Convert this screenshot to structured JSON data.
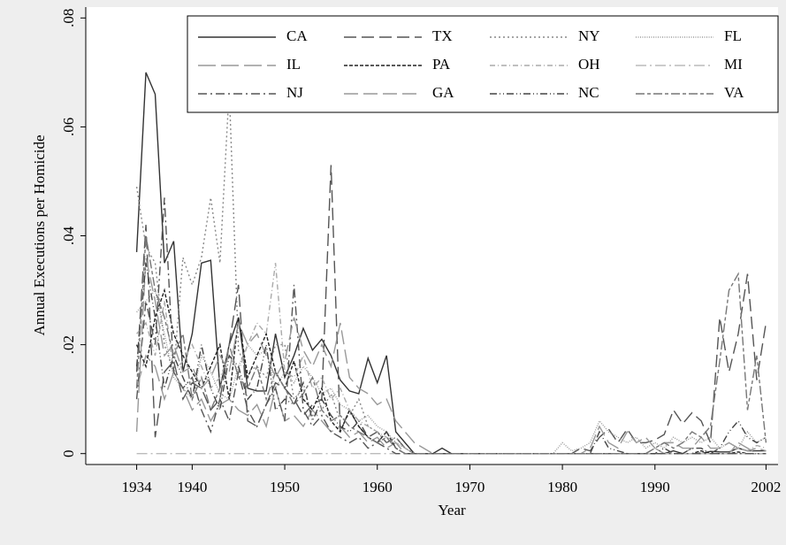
{
  "chart_data": {
    "type": "line",
    "xlabel": "Year",
    "ylabel": "Annual Executions per Homicide",
    "x": [
      1934,
      1935,
      1936,
      1937,
      1938,
      1939,
      1940,
      1941,
      1942,
      1943,
      1944,
      1945,
      1946,
      1947,
      1948,
      1949,
      1950,
      1951,
      1952,
      1953,
      1954,
      1955,
      1956,
      1957,
      1958,
      1959,
      1960,
      1961,
      1962,
      1963,
      1964,
      1965,
      1966,
      1967,
      1968,
      1969,
      1970,
      1971,
      1972,
      1973,
      1974,
      1975,
      1976,
      1977,
      1978,
      1979,
      1980,
      1981,
      1982,
      1983,
      1984,
      1985,
      1986,
      1987,
      1988,
      1989,
      1990,
      1991,
      1992,
      1993,
      1994,
      1995,
      1996,
      1997,
      1998,
      1999,
      2000,
      2001,
      2002
    ],
    "xlim": [
      1928.5,
      2003.3
    ],
    "xticks": [
      1934,
      1940,
      1950,
      1960,
      1970,
      1980,
      1990,
      2002
    ],
    "ylim": [
      -0.002,
      0.082
    ],
    "yticks": [
      0,
      {
        "value": 0.02,
        "label": ".02"
      },
      {
        "value": 0.04,
        "label": ".04"
      },
      {
        "value": 0.06,
        "label": ".06"
      },
      {
        "value": 0.08,
        "label": ".08"
      }
    ],
    "series": [
      {
        "name": "CA",
        "color": "#333333",
        "dash": "none",
        "values": [
          0.037,
          0.07,
          0.066,
          0.035,
          0.039,
          0.015,
          0.022,
          0.035,
          0.0355,
          0.012,
          0.02,
          0.025,
          0.012,
          0.0115,
          0.0115,
          0.022,
          0.014,
          0.018,
          0.023,
          0.019,
          0.021,
          0.018,
          0.0135,
          0.0115,
          0.011,
          0.0175,
          0.013,
          0.018,
          0.004,
          0.002,
          0,
          0,
          0,
          0.001,
          0,
          0,
          0,
          0,
          0,
          0,
          0,
          0,
          0,
          0,
          0,
          0,
          0,
          0,
          0,
          0,
          0,
          0,
          0,
          0,
          0,
          0,
          0,
          0,
          0.0005,
          0,
          0,
          0,
          0.0004,
          0.0003,
          0.0003,
          0.001,
          0.0005,
          0.0005,
          0.0005
        ]
      },
      {
        "name": "TX",
        "color": "#555555",
        "dash": "14,6",
        "values": [
          0.015,
          0.042,
          0.003,
          0.015,
          0.017,
          0.01,
          0.013,
          0.012,
          0.008,
          0.01,
          0.02,
          0.031,
          0.006,
          0.005,
          0.009,
          0.013,
          0.012,
          0.01,
          0.007,
          0.009,
          0.01,
          0.053,
          0.004,
          0.008,
          0.005,
          0.003,
          0.004,
          0.002,
          0.003,
          0.001,
          0,
          0,
          0,
          0,
          0,
          0,
          0,
          0,
          0,
          0,
          0,
          0,
          0,
          0,
          0,
          0,
          0,
          0,
          0.001,
          0.0005,
          0.003,
          0.0045,
          0.002,
          0.0045,
          0.002,
          0.002,
          0.0025,
          0.0035,
          0.008,
          0.0055,
          0.0075,
          0.006,
          0.002,
          0.025,
          0.015,
          0.022,
          0.033,
          0.0135,
          0.024
        ]
      },
      {
        "name": "NY",
        "color": "#888888",
        "dash": "2,3",
        "values": [
          0.049,
          0.038,
          0.035,
          0.02,
          0.015,
          0.036,
          0.031,
          0.036,
          0.047,
          0.035,
          0.067,
          0.019,
          0.015,
          0.016,
          0.014,
          0.02,
          0.02,
          0.01,
          0.012,
          0.007,
          0.008,
          0.011,
          0.006,
          0.007,
          0.01,
          0.005,
          0.004,
          0.002,
          0.003,
          0.001,
          0,
          0,
          0,
          0,
          0,
          0,
          0,
          0,
          0,
          0,
          0,
          0,
          0,
          0,
          0,
          0,
          0,
          0,
          0,
          0,
          0,
          0,
          0,
          0,
          0,
          0,
          0,
          0,
          0,
          0,
          0,
          0,
          0,
          0,
          0,
          0,
          0,
          0,
          0
        ]
      },
      {
        "name": "FL",
        "color": "#999999",
        "dash": "1,1.5",
        "values": [
          0.026,
          0.028,
          0.03,
          0.022,
          0.014,
          0.012,
          0.01,
          0.018,
          0.015,
          0.011,
          0.01,
          0.016,
          0.02,
          0.018,
          0.019,
          0.012,
          0.015,
          0.013,
          0.016,
          0.014,
          0.011,
          0.012,
          0.009,
          0.008,
          0.006,
          0.007,
          0.005,
          0.004,
          0.002,
          0.001,
          0,
          0,
          0,
          0,
          0,
          0,
          0,
          0,
          0,
          0,
          0,
          0,
          0,
          0,
          0,
          0,
          0.002,
          0.0005,
          0.001,
          0.002,
          0.006,
          0.004,
          0.003,
          0.002,
          0.003,
          0.001,
          0.002,
          0.001,
          0.003,
          0.002,
          0.003,
          0.002,
          0.003,
          0.001,
          0.002,
          0.001,
          0.004,
          0.002,
          0.003
        ]
      },
      {
        "name": "IL",
        "color": "#999999",
        "dash": "20,6",
        "values": [
          0.012,
          0.018,
          0.016,
          0.01,
          0.015,
          0.012,
          0.008,
          0.01,
          0.006,
          0.009,
          0.01,
          0.008,
          0.007,
          0.009,
          0.005,
          0.012,
          0.006,
          0.007,
          0.005,
          0.008,
          0.006,
          0.004,
          0.005,
          0.003,
          0.004,
          0.002,
          0.003,
          0.001,
          0.002,
          0,
          0,
          0,
          0,
          0,
          0,
          0,
          0,
          0,
          0,
          0,
          0,
          0,
          0,
          0,
          0,
          0,
          0,
          0,
          0,
          0,
          0,
          0,
          0,
          0,
          0,
          0,
          0.001,
          0,
          0,
          0,
          0.001,
          0,
          0,
          0,
          0,
          0.002,
          0.001,
          0,
          0
        ]
      },
      {
        "name": "PA",
        "color": "#222222",
        "dash": "4,2",
        "values": [
          0.02,
          0.016,
          0.025,
          0.03,
          0.022,
          0.018,
          0.015,
          0.012,
          0.016,
          0.02,
          0.01,
          0.025,
          0.014,
          0.018,
          0.022,
          0.015,
          0.012,
          0.017,
          0.01,
          0.008,
          0.012,
          0.006,
          0.004,
          0.008,
          0.005,
          0.003,
          0.002,
          0.004,
          0.001,
          0,
          0,
          0,
          0,
          0,
          0,
          0,
          0,
          0,
          0,
          0,
          0,
          0,
          0,
          0,
          0,
          0,
          0,
          0,
          0,
          0,
          0,
          0,
          0,
          0,
          0,
          0,
          0,
          0,
          0,
          0,
          0,
          0.0005,
          0,
          0,
          0,
          0.0003,
          0,
          0,
          0
        ]
      },
      {
        "name": "OH",
        "color": "#aaaaaa",
        "dash": "6,3,1,3",
        "values": [
          0.022,
          0.024,
          0.018,
          0.028,
          0.015,
          0.017,
          0.02,
          0.016,
          0.012,
          0.014,
          0.018,
          0.015,
          0.02,
          0.024,
          0.022,
          0.035,
          0.015,
          0.014,
          0.018,
          0.012,
          0.014,
          0.01,
          0.012,
          0.008,
          0.006,
          0.005,
          0.004,
          0.003,
          0.002,
          0.001,
          0,
          0,
          0,
          0,
          0,
          0,
          0,
          0,
          0,
          0,
          0,
          0,
          0,
          0,
          0,
          0,
          0,
          0,
          0,
          0,
          0,
          0,
          0,
          0,
          0,
          0,
          0,
          0,
          0,
          0,
          0,
          0,
          0,
          0,
          0,
          0.001,
          0.0005,
          0.0015,
          0.001
        ]
      },
      {
        "name": "MI",
        "color": "#bbbbbb",
        "dash": "12,4,2,4",
        "values": [
          0,
          0,
          0,
          0,
          0,
          0,
          0,
          0,
          0,
          0,
          0,
          0,
          0,
          0,
          0,
          0,
          0,
          0,
          0,
          0,
          0,
          0,
          0,
          0,
          0,
          0,
          0,
          0,
          0,
          0,
          0,
          0,
          0,
          0,
          0,
          0,
          0,
          0,
          0,
          0,
          0,
          0,
          0,
          0,
          0,
          0,
          0,
          0,
          0,
          0,
          0,
          0,
          0,
          0,
          0,
          0,
          0,
          0,
          0,
          0,
          0,
          0,
          0,
          0,
          0,
          0,
          0,
          0,
          0
        ]
      },
      {
        "name": "NJ",
        "color": "#555555",
        "dash": "10,4,2,4",
        "values": [
          0.01,
          0.028,
          0.02,
          0.047,
          0.015,
          0.012,
          0.014,
          0.008,
          0.004,
          0.01,
          0.006,
          0.015,
          0.008,
          0.005,
          0.009,
          0.012,
          0.006,
          0.031,
          0.008,
          0.005,
          0.007,
          0.004,
          0.003,
          0.002,
          0.003,
          0.001,
          0.002,
          0.001,
          0,
          0,
          0,
          0,
          0,
          0,
          0,
          0,
          0,
          0,
          0,
          0,
          0,
          0,
          0,
          0,
          0,
          0,
          0,
          0,
          0,
          0,
          0,
          0,
          0,
          0,
          0,
          0,
          0,
          0,
          0,
          0,
          0,
          0,
          0,
          0,
          0,
          0,
          0,
          0,
          0
        ]
      },
      {
        "name": "GA",
        "color": "#999999",
        "dash": "16,6",
        "values": [
          0.004,
          0.036,
          0.028,
          0.018,
          0.02,
          0.015,
          0.016,
          0.012,
          0.014,
          0.018,
          0.015,
          0.024,
          0.02,
          0.022,
          0.018,
          0.014,
          0.017,
          0.025,
          0.019,
          0.016,
          0.02,
          0.016,
          0.024,
          0.014,
          0.012,
          0.011,
          0.009,
          0.01,
          0.006,
          0.004,
          0.002,
          0.001,
          0,
          0,
          0,
          0,
          0,
          0,
          0,
          0,
          0,
          0,
          0,
          0,
          0,
          0,
          0,
          0,
          0,
          0.001,
          0.005,
          0.002,
          0.001,
          0.004,
          0.002,
          0.003,
          0.001,
          0.002,
          0.002,
          0.001,
          0.001,
          0.003,
          0.001,
          0.001,
          0.002,
          0.001,
          0.0005,
          0.001,
          0.0005
        ]
      },
      {
        "name": "NC",
        "color": "#444444",
        "dash": "8,3,1,3,1,3",
        "values": [
          0.016,
          0.035,
          0.025,
          0.012,
          0.018,
          0.014,
          0.01,
          0.02,
          0.012,
          0.008,
          0.018,
          0.016,
          0.01,
          0.012,
          0.02,
          0.008,
          0.01,
          0.009,
          0.013,
          0.006,
          0.01,
          0.007,
          0.005,
          0.004,
          0.006,
          0.003,
          0.002,
          0.004,
          0.001,
          0,
          0,
          0,
          0,
          0,
          0,
          0,
          0,
          0,
          0,
          0,
          0,
          0,
          0,
          0,
          0,
          0,
          0,
          0,
          0,
          0,
          0.004,
          0.001,
          0.0005,
          0,
          0,
          0,
          0,
          0.001,
          0,
          0,
          0.001,
          0.001,
          0,
          0.001,
          0.004,
          0.006,
          0.003,
          0.002,
          0.003
        ]
      },
      {
        "name": "VA",
        "color": "#777777",
        "dash": "10,3,4,3",
        "values": [
          0.012,
          0.04,
          0.03,
          0.025,
          0.018,
          0.022,
          0.01,
          0.014,
          0.008,
          0.012,
          0.02,
          0.014,
          0.012,
          0.016,
          0.01,
          0.015,
          0.012,
          0.009,
          0.011,
          0.014,
          0.008,
          0.006,
          0.007,
          0.005,
          0.004,
          0.003,
          0.002,
          0.003,
          0.001,
          0,
          0,
          0,
          0,
          0,
          0,
          0,
          0,
          0,
          0,
          0,
          0,
          0,
          0,
          0,
          0,
          0,
          0,
          0,
          0,
          0,
          0,
          0,
          0,
          0,
          0,
          0,
          0.001,
          0.002,
          0.001,
          0.002,
          0.004,
          0.003,
          0.005,
          0.017,
          0.03,
          0.033,
          0.008,
          0.018,
          0.002
        ]
      }
    ]
  }
}
